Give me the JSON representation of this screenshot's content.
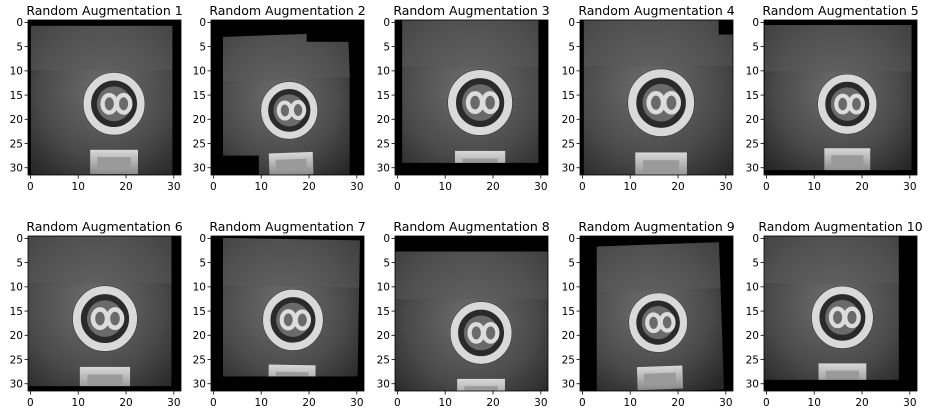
{
  "figure": {
    "panels": [
      {
        "title": "Random Augmentation 1"
      },
      {
        "title": "Random Augmentation 2"
      },
      {
        "title": "Random Augmentation 3"
      },
      {
        "title": "Random Augmentation 4"
      },
      {
        "title": "Random Augmentation 5"
      },
      {
        "title": "Random Augmentation 6"
      },
      {
        "title": "Random Augmentation 7"
      },
      {
        "title": "Random Augmentation 8"
      },
      {
        "title": "Random Augmentation 9"
      },
      {
        "title": "Random Augmentation 10"
      }
    ],
    "x_ticks": [
      "0",
      "10",
      "20",
      "30"
    ],
    "y_ticks": [
      "0",
      "5",
      "10",
      "15",
      "20",
      "25",
      "30"
    ],
    "colormap": "gray",
    "image_size": 32
  }
}
